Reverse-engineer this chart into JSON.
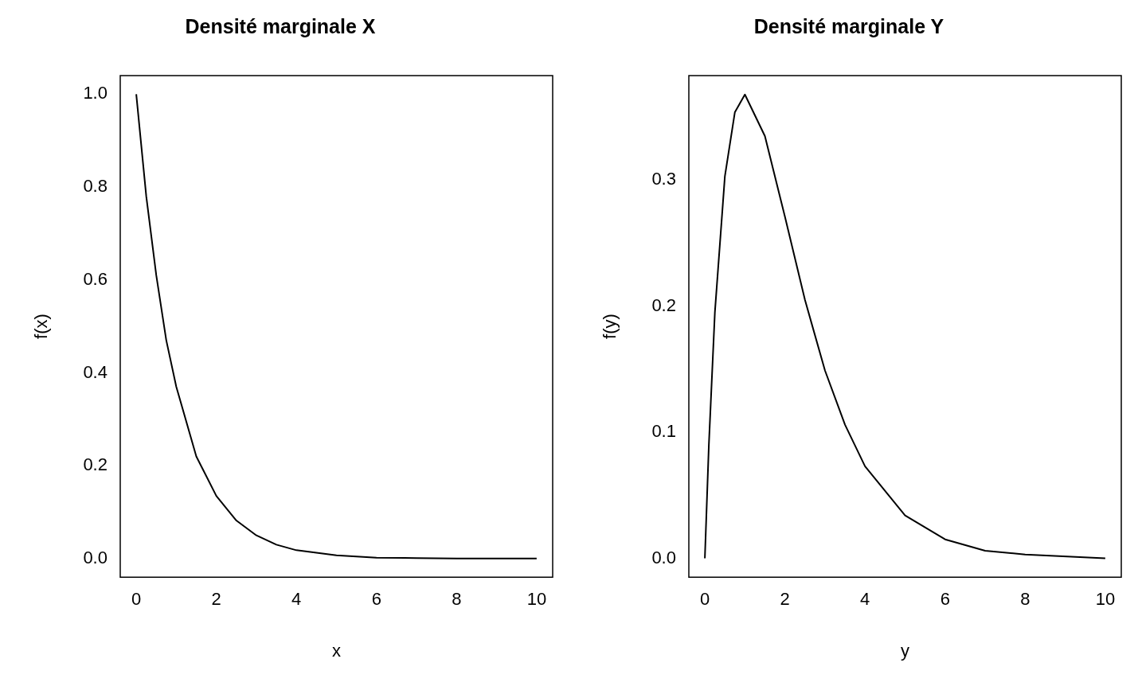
{
  "chart_data": [
    {
      "type": "line",
      "title": "Densité marginale X",
      "xlabel": "x",
      "ylabel": "f(x)",
      "color": "#000000",
      "marker": "none",
      "grid": false,
      "legend": false,
      "x": [
        0,
        0.25,
        0.5,
        0.75,
        1,
        1.5,
        2,
        2.5,
        3,
        3.5,
        4,
        5,
        6,
        7,
        8,
        10
      ],
      "values": [
        1,
        0.78,
        0.61,
        0.47,
        0.37,
        0.22,
        0.135,
        0.082,
        0.05,
        0.03,
        0.018,
        0.007,
        0.002,
        0.001,
        0,
        0
      ],
      "xlim": [
        -0.4,
        10.4
      ],
      "xticks": [
        0,
        2,
        4,
        6,
        8,
        10
      ],
      "ylim": [
        -0.04,
        1.04
      ],
      "yticks": [
        {
          "value": 0,
          "label": "0.0"
        },
        {
          "value": 0.2,
          "label": "0.2"
        },
        {
          "value": 0.4,
          "label": "0.4"
        },
        {
          "value": 0.6,
          "label": "0.6"
        },
        {
          "value": 0.8,
          "label": "0.8"
        },
        {
          "value": 1,
          "label": "1.0"
        }
      ]
    },
    {
      "type": "line",
      "title": "Densité marginale Y",
      "xlabel": "y",
      "ylabel": "f(y)",
      "color": "#000000",
      "marker": "none",
      "grid": false,
      "legend": false,
      "x": [
        0,
        0.1,
        0.25,
        0.5,
        0.75,
        1,
        1.5,
        2,
        2.5,
        3,
        3.5,
        4,
        5,
        6,
        7,
        8,
        10
      ],
      "values": [
        0,
        0.09,
        0.195,
        0.303,
        0.354,
        0.368,
        0.335,
        0.271,
        0.205,
        0.149,
        0.106,
        0.073,
        0.034,
        0.015,
        0.006,
        0.003,
        0
      ],
      "xlim": [
        -0.4,
        10.4
      ],
      "xticks": [
        0,
        2,
        4,
        6,
        8,
        10
      ],
      "ylim": [
        -0.015,
        0.383
      ],
      "yticks": [
        {
          "value": 0,
          "label": "0.0"
        },
        {
          "value": 0.1,
          "label": "0.1"
        },
        {
          "value": 0.2,
          "label": "0.2"
        },
        {
          "value": 0.3,
          "label": "0.3"
        }
      ]
    }
  ]
}
